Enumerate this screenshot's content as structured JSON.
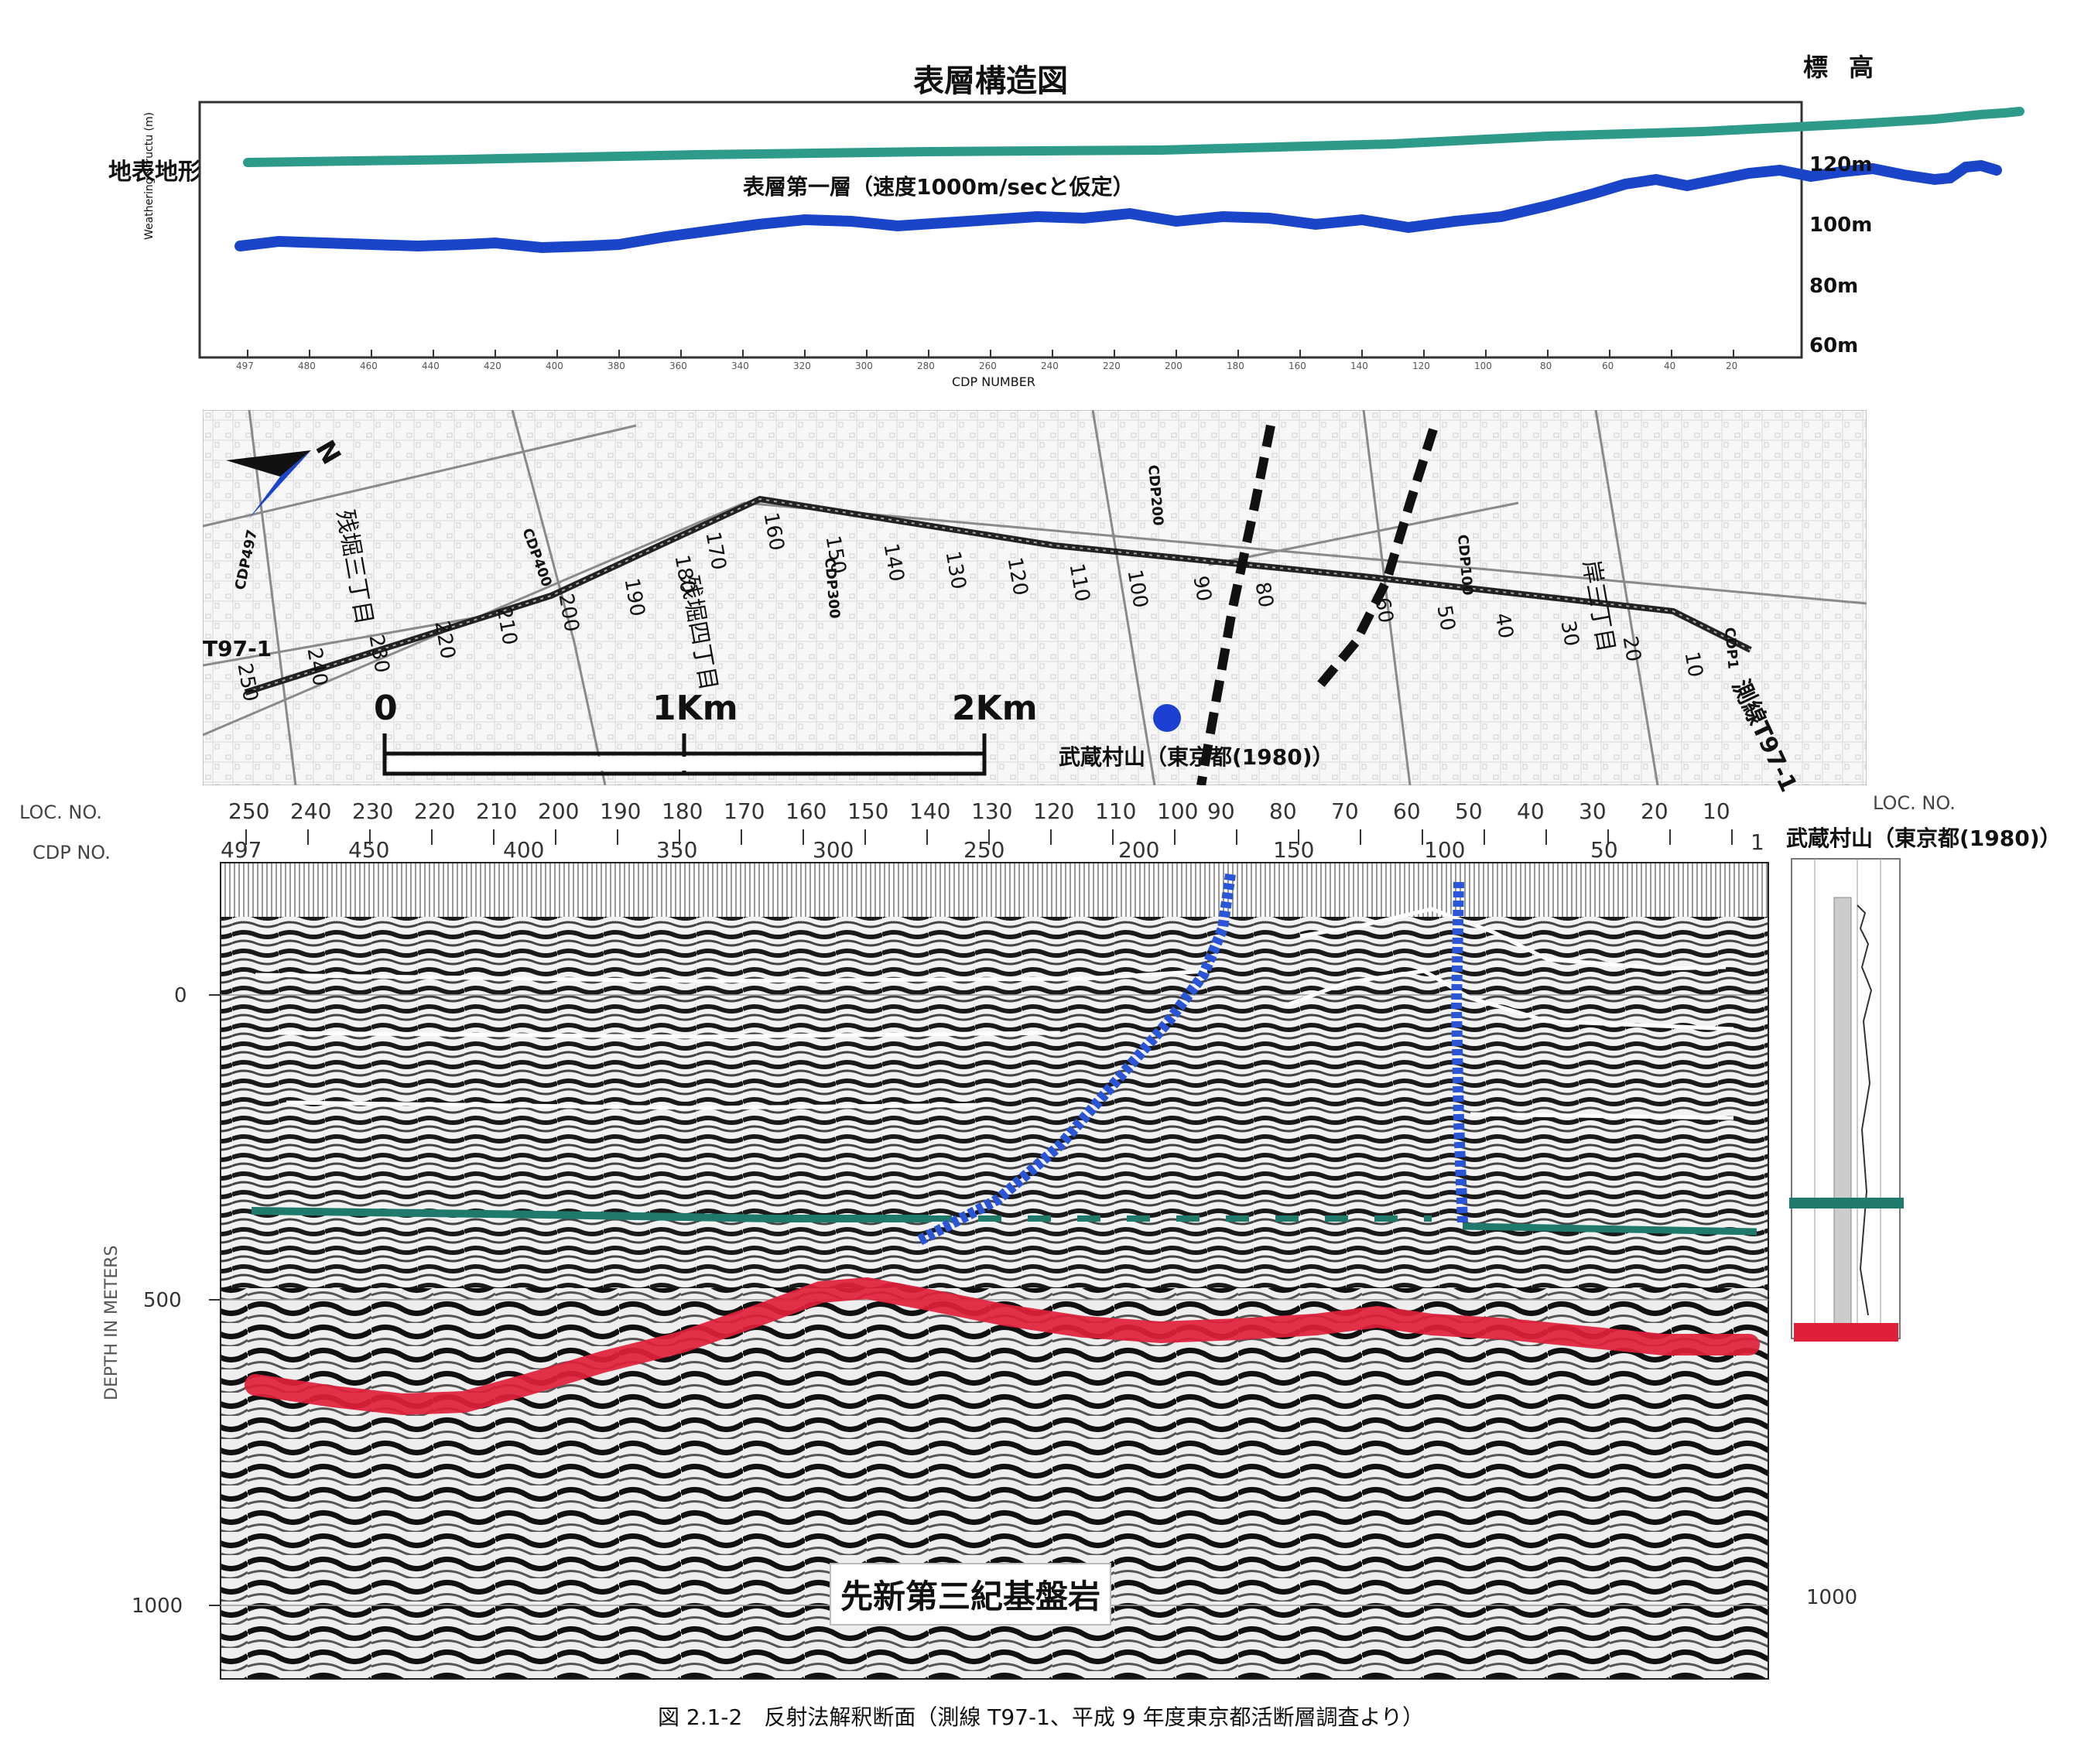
{
  "top_panel": {
    "title": "表層構造図",
    "elevation_header": "標 高",
    "surface_label": "地表地形",
    "layer_label": "表層第一層（速度1000m/secと仮定）",
    "y_axis_label": "Weathering Structu (m)",
    "x_axis_label": "CDP NUMBER",
    "elevation_ticks": [
      "120m",
      "100m",
      "80m",
      "60m"
    ],
    "cdp_ticks": [
      "497",
      "480",
      "460",
      "440",
      "420",
      "400",
      "380",
      "360",
      "340",
      "320",
      "300",
      "280",
      "260",
      "240",
      "220",
      "200",
      "180",
      "160",
      "140",
      "120",
      "100",
      "80",
      "60",
      "40",
      "20"
    ],
    "colors": {
      "surface": "#2e9a8a",
      "layer": "#1b45c8"
    }
  },
  "map": {
    "scale_ticks": [
      "0",
      "1Km",
      "2Km"
    ],
    "line_label": "測線T97-1",
    "line_label_left": "T97-1",
    "well_label": "武蔵村山（東京都(1980)）",
    "cdp_markers": [
      "CDP497",
      "CDP400",
      "CDP300",
      "CDP200",
      "CDP100",
      "CDP1"
    ],
    "town_labels": [
      "残堀三丁目",
      "残堀四丁目",
      "岸三丁目"
    ],
    "loc_labels": [
      "250",
      "240",
      "230",
      "220",
      "210",
      "200",
      "190",
      "180",
      "170",
      "160",
      "150",
      "140",
      "130",
      "120",
      "110",
      "100",
      "90",
      "80",
      "60",
      "50",
      "40",
      "30",
      "20",
      "10"
    ],
    "colors": {
      "fault": "#111111",
      "well": "#1b3fd1",
      "north_arrow": "#1b45c8"
    }
  },
  "section": {
    "loc_no_label": "LOC. NO.",
    "cdp_no_label": "CDP NO.",
    "loc_ticks": [
      "250",
      "240",
      "230",
      "220",
      "210",
      "200",
      "190",
      "180",
      "170",
      "160",
      "150",
      "140",
      "130",
      "120",
      "110",
      "100",
      "90",
      "80",
      "70",
      "60",
      "50",
      "40",
      "30",
      "20",
      "10"
    ],
    "cdp_ticks": [
      "497",
      "450",
      "400",
      "350",
      "300",
      "250",
      "200",
      "150",
      "100",
      "50",
      "1"
    ],
    "depth_label": "DEPTH IN METERS",
    "depth_ticks": [
      "0",
      "500",
      "1000"
    ],
    "right_depth_ticks": [
      "1000"
    ],
    "bedrock_label": "先新第三紀基盤岩",
    "well_title": "武蔵村山（東京都(1980)）",
    "colors": {
      "fault": "#2a55d6",
      "horizon_teal": "#1f7a6c",
      "basement": "#e0203a",
      "reflector": "#ffffff"
    }
  },
  "caption": "図 2.1-2　反射法解釈断面（測線 T97-1、平成 9 年度東京都活断層調査より）"
}
